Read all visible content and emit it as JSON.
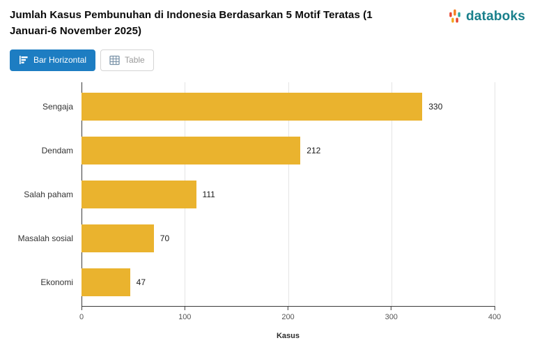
{
  "header": {
    "title": "Jumlah Kasus Pembunuhan di Indonesia Berdasarkan 5 Motif Teratas (1 Januari-6 November 2025)",
    "logo_text": "databoks"
  },
  "toolbar": {
    "bar_button_label": "Bar Horizontal",
    "table_button_label": "Table"
  },
  "chart_data": {
    "type": "bar",
    "orientation": "horizontal",
    "title": "Jumlah Kasus Pembunuhan di Indonesia Berdasarkan 5 Motif Teratas (1 Januari-6 November 2025)",
    "categories": [
      "Sengaja",
      "Dendam",
      "Salah paham",
      "Masalah sosial",
      "Ekonomi"
    ],
    "values": [
      330,
      212,
      111,
      70,
      47
    ],
    "xlabel": "Kasus",
    "ylabel": "",
    "xlim": [
      0,
      400
    ],
    "xticks": [
      0,
      100,
      200,
      300,
      400
    ],
    "grid": true,
    "legend": false,
    "bar_color": "#eab32e"
  },
  "colors": {
    "accent_blue": "#1d7dc2",
    "bar_yellow": "#eab32e",
    "logo_teal": "#187f8b",
    "logo_orange": "#f57e20",
    "logo_red": "#e8432e"
  }
}
